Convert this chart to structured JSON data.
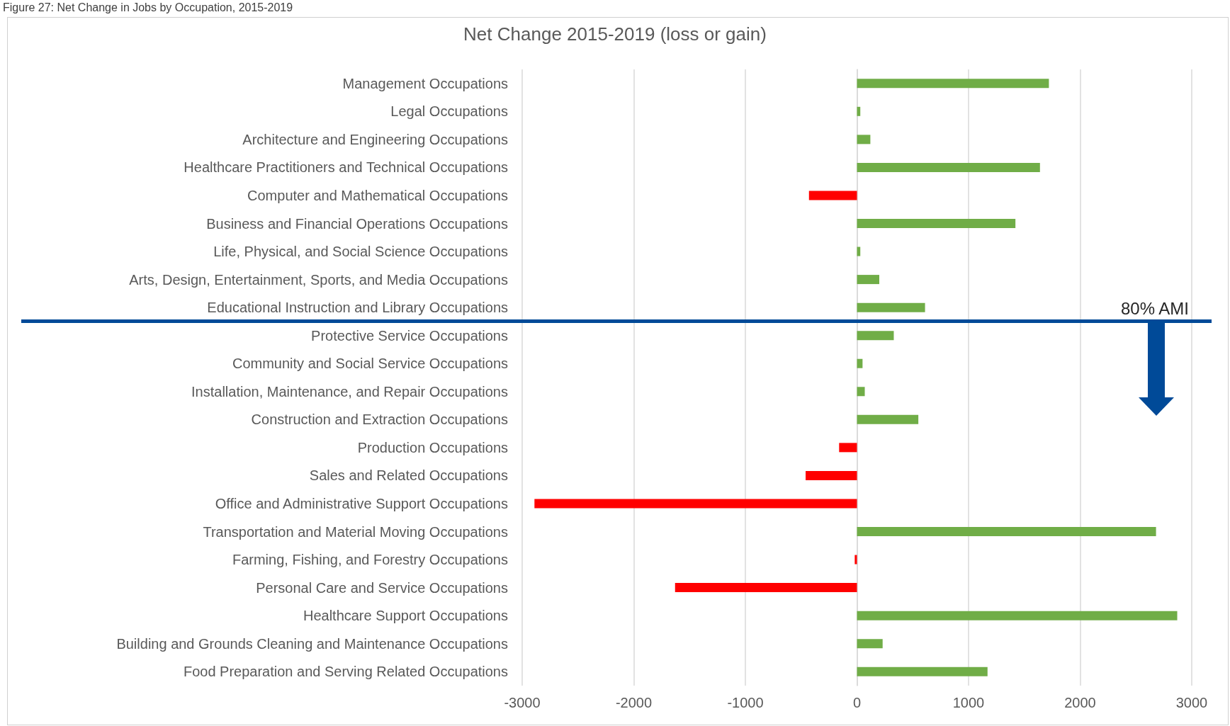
{
  "chart_data": {
    "type": "bar",
    "orientation": "horizontal",
    "title": "Net Change 2015-2019 (loss or gain)",
    "annotations": [
      "Figure 27: Net Change in Jobs by Occupation, 2015-2019",
      "80% AMI"
    ],
    "categories": [
      "Management Occupations",
      "Legal Occupations",
      "Architecture and Engineering Occupations",
      "Healthcare Practitioners and Technical Occupations",
      "Computer and Mathematical Occupations",
      "Business and Financial Operations Occupations",
      "Life, Physical, and Social Science Occupations",
      "Arts, Design, Entertainment, Sports, and Media Occupations",
      "Educational Instruction and Library Occupations",
      "Protective Service Occupations",
      "Community and Social Service Occupations",
      "Installation, Maintenance, and Repair Occupations",
      "Construction and Extraction Occupations",
      "Production Occupations",
      "Sales and Related Occupations",
      "Office and Administrative Support Occupations",
      "Transportation and Material Moving Occupations",
      "Farming, Fishing, and Forestry Occupations",
      "Personal Care and Service Occupations",
      "Healthcare Support Occupations",
      "Building and Grounds Cleaning and Maintenance Occupations",
      "Food Preparation and Serving Related Occupations"
    ],
    "values": [
      1720,
      30,
      120,
      1640,
      -430,
      1420,
      30,
      200,
      610,
      330,
      50,
      70,
      550,
      -160,
      -460,
      -2890,
      2680,
      -20,
      -1630,
      2870,
      230,
      1170
    ],
    "colors": [
      "#70ad47",
      "#70ad47",
      "#70ad47",
      "#70ad47",
      "#ff0000",
      "#70ad47",
      "#70ad47",
      "#70ad47",
      "#70ad47",
      "#70ad47",
      "#70ad47",
      "#70ad47",
      "#70ad47",
      "#ff0000",
      "#ff0000",
      "#ff0000",
      "#70ad47",
      "#ff0000",
      "#ff0000",
      "#70ad47",
      "#70ad47",
      "#70ad47"
    ],
    "xlim": [
      -3000,
      3000
    ],
    "xticks": [
      -3000,
      -2000,
      -1000,
      0,
      1000,
      2000,
      3000
    ],
    "grid": "x"
  }
}
